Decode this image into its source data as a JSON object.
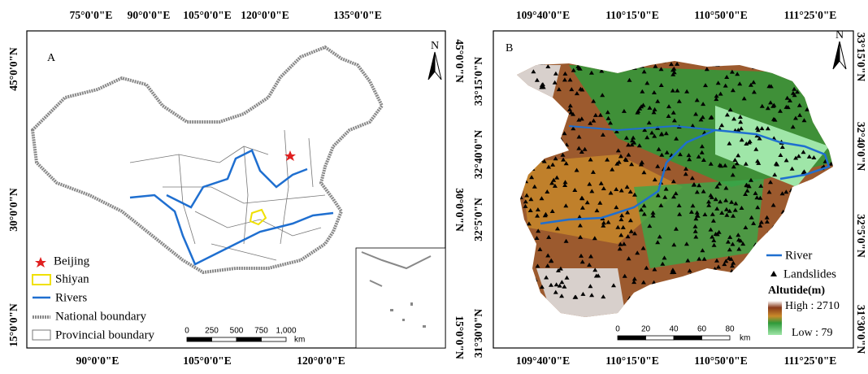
{
  "panels": [
    {
      "label": "A",
      "north": "N",
      "top_labels": [
        "75°0'0\"E",
        "90°0'0\"E",
        "105°0'0\"E",
        "120°0'0\"E",
        "135°0'0\"E"
      ],
      "bottom_labels": [
        "90°0'0\"E",
        "105°0'0\"E",
        "120°0'0\"E"
      ],
      "left_labels": [
        "45°0'0\"N",
        "30°0'0\"N",
        "15°0'0\"N"
      ],
      "right_labels": [
        "45°0'0\"N",
        "30°0'0\"N",
        "15°0'0\"N"
      ],
      "legend": [
        "Beijing",
        "Shiyan",
        "Rivers",
        "National boundary",
        "Provincial boundary"
      ],
      "scale": {
        "ticks": [
          "0",
          "250",
          "500",
          "750",
          "1,000"
        ],
        "unit": "km"
      }
    },
    {
      "label": "B",
      "north": "N",
      "top_labels": [
        "109°40'0\"E",
        "110°15'0\"E",
        "110°50'0\"E",
        "111°25'0\"E"
      ],
      "bottom_labels": [
        "109°40'0\"E",
        "110°15'0\"E",
        "110°50'0\"E",
        "111°25'0\"E"
      ],
      "left_labels": [
        "33°15'0\"N",
        "32°40'0\"N",
        "32°5'0\"N",
        "31°30'0\"N"
      ],
      "right_labels": [
        "33°15'0\"N",
        "32°40'0\"N",
        "32°5'0\"N",
        "31°30'0\"N"
      ],
      "legend": [
        "River",
        "Landslides"
      ],
      "altitude": {
        "title": "Altutide(m)",
        "high": "High : 2710",
        "low": "Low : 79"
      },
      "scale": {
        "ticks": [
          "0",
          "20",
          "40",
          "60",
          "80"
        ],
        "unit": "km"
      }
    }
  ]
}
